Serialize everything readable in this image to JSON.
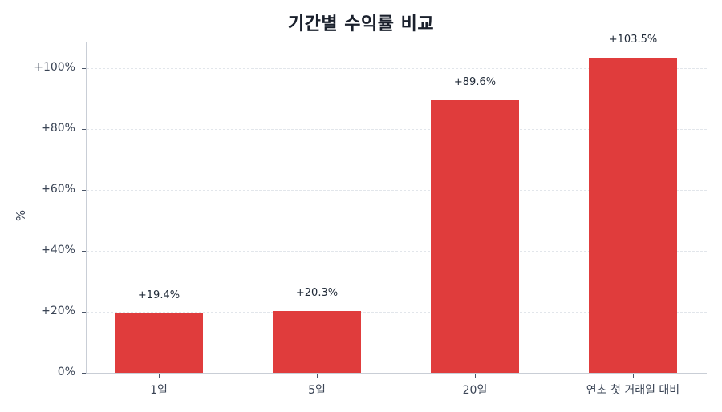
{
  "chart_data": {
    "type": "bar",
    "title": "기간별 수익률 비교",
    "xlabel": "",
    "ylabel": "%",
    "categories": [
      "1일",
      "5일",
      "20일",
      "연초 첫 거래일 대비"
    ],
    "values": [
      19.4,
      20.3,
      89.6,
      103.5
    ],
    "data_labels": [
      "+19.4%",
      "+20.3%",
      "+89.6%",
      "+103.5%"
    ],
    "ylim": [
      0,
      108
    ],
    "yticks": [
      0,
      20,
      40,
      60,
      80,
      100
    ],
    "ytick_labels": [
      "0%",
      "+20%",
      "+40%",
      "+60%",
      "+80%",
      "+100%"
    ],
    "grid": "horizontal dashed",
    "legend": null,
    "bar_color": "#e03c3c"
  },
  "title": "기간별 수익률 비교",
  "ylabel": "%"
}
